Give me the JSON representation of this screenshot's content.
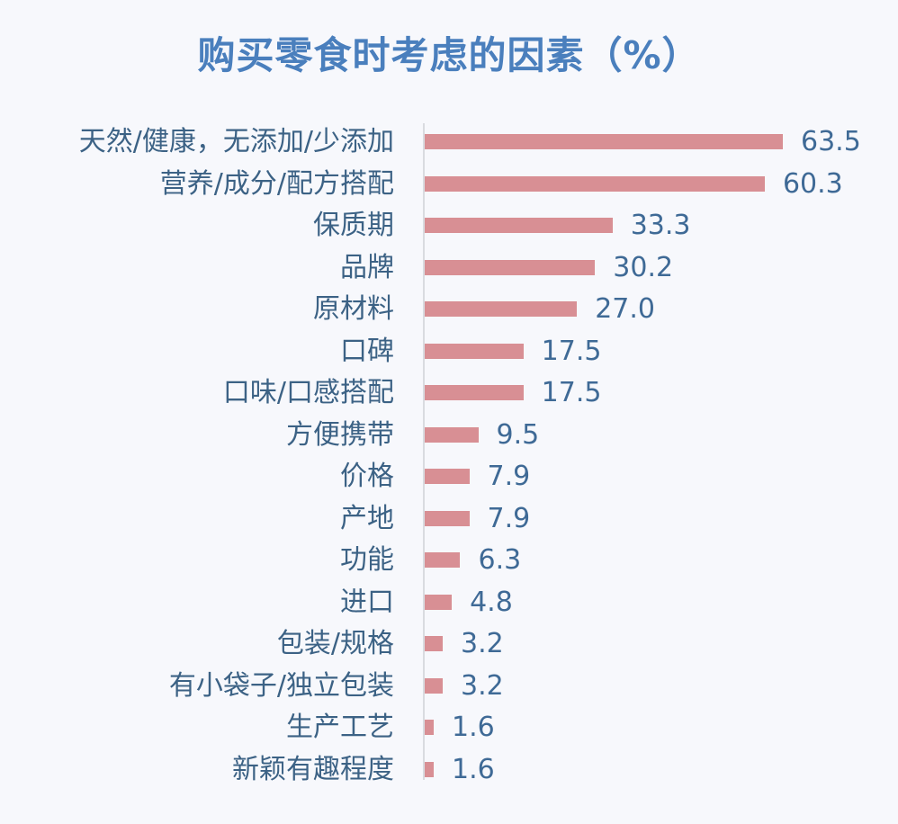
{
  "title": "购买零食时考虑的因素（%）",
  "colors": {
    "bar": "#d88f94",
    "title": "#4a7fbd",
    "label": "#3c6285",
    "value": "#3f6a96",
    "background": "#f7f8fc"
  },
  "chart_data": {
    "type": "bar",
    "orientation": "horizontal",
    "title": "购买零食时考虑的因素（%）",
    "xlabel": "",
    "ylabel": "",
    "grid": false,
    "legend": null,
    "categories": [
      "天然/健康，无添加/少添加",
      "营养/成分/配方搭配",
      "保质期",
      "品牌",
      "原材料",
      "口碑",
      "口味/口感搭配",
      "方便携带",
      "价格",
      "产地",
      "功能",
      "进口",
      "包装/规格",
      "有小袋子/独立包装",
      "生产工艺",
      "新颖有趣程度"
    ],
    "values": [
      63.5,
      60.3,
      33.3,
      30.2,
      27.0,
      17.5,
      17.5,
      9.5,
      7.9,
      7.9,
      6.3,
      4.8,
      3.2,
      3.2,
      1.6,
      1.6
    ],
    "value_labels": [
      "63.5",
      "60.3",
      "33.3",
      "30.2",
      "27.0",
      "17.5",
      "17.5",
      "9.5",
      "7.9",
      "7.9",
      "6.3",
      "4.8",
      "3.2",
      "3.2",
      "1.6",
      "1.6"
    ],
    "xlim": [
      0,
      65
    ]
  }
}
